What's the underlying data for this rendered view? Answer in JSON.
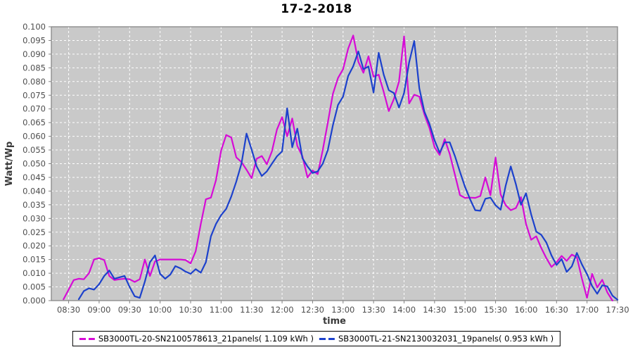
{
  "title": "17-2-2018",
  "x_axis": {
    "label": "time",
    "tick_labels": [
      "08:30",
      "09:00",
      "09:30",
      "10:00",
      "10:30",
      "11:00",
      "11:30",
      "12:00",
      "12:30",
      "13:00",
      "13:30",
      "14:00",
      "14:30",
      "15:00",
      "15:30",
      "16:00",
      "16:30",
      "17:00",
      "17:30"
    ]
  },
  "y_axis": {
    "label": "Watt/Wp",
    "min": 0.0,
    "max": 0.1,
    "step": 0.005,
    "decimals": 3
  },
  "colors": {
    "plot_background": "#c9c9c9",
    "grid": "#ffffff",
    "plot_border": "#808080",
    "tick_text": "#4d4d4d",
    "axis_label_text": "#3a3a3a",
    "series_magenta": "#d60bd6",
    "series_blue": "#1c41cc"
  },
  "chart_data": {
    "type": "line",
    "title": "17-2-2018",
    "xlabel": "time",
    "ylabel": "Watt/Wp",
    "ylim": [
      0.0,
      0.1
    ],
    "y_tick_step": 0.005,
    "grid": "white-dashed",
    "legend_position": "bottom-center",
    "x_domain": [
      "08:13",
      "17:30"
    ],
    "x": [
      "08:25",
      "08:30",
      "08:35",
      "08:40",
      "08:45",
      "08:50",
      "08:55",
      "09:00",
      "09:05",
      "09:10",
      "09:15",
      "09:20",
      "09:25",
      "09:30",
      "09:35",
      "09:40",
      "09:45",
      "09:50",
      "09:55",
      "10:00",
      "10:05",
      "10:10",
      "10:15",
      "10:20",
      "10:25",
      "10:30",
      "10:35",
      "10:40",
      "10:45",
      "10:50",
      "10:55",
      "11:00",
      "11:05",
      "11:10",
      "11:15",
      "11:20",
      "11:25",
      "11:30",
      "11:35",
      "11:40",
      "11:45",
      "11:50",
      "11:55",
      "12:00",
      "12:05",
      "12:10",
      "12:15",
      "12:20",
      "12:25",
      "12:30",
      "12:35",
      "12:40",
      "12:45",
      "12:50",
      "12:55",
      "13:00",
      "13:05",
      "13:10",
      "13:15",
      "13:20",
      "13:25",
      "13:30",
      "13:35",
      "13:40",
      "13:45",
      "13:50",
      "13:55",
      "14:00",
      "14:05",
      "14:10",
      "14:15",
      "14:20",
      "14:25",
      "14:30",
      "14:35",
      "14:40",
      "14:45",
      "14:50",
      "14:55",
      "15:00",
      "15:05",
      "15:10",
      "15:15",
      "15:20",
      "15:25",
      "15:30",
      "15:35",
      "15:40",
      "15:45",
      "15:50",
      "15:55",
      "16:00",
      "16:05",
      "16:10",
      "16:15",
      "16:20",
      "16:25",
      "16:30",
      "16:35",
      "16:40",
      "16:45",
      "16:50",
      "16:55",
      "17:00",
      "17:05",
      "17:10",
      "17:15",
      "17:20",
      "17:25",
      "17:30"
    ],
    "series": [
      {
        "name": "SB3000TL-20-SN2100578613_21panels( 1.109 kWh )",
        "color": "#d60bd6",
        "energy_kwh": "1.109",
        "values": [
          0.0005,
          0.004,
          0.0075,
          0.008,
          0.0078,
          0.01,
          0.015,
          0.0155,
          0.0148,
          0.009,
          0.0075,
          0.0078,
          0.008,
          0.0078,
          0.0068,
          0.0078,
          0.015,
          0.009,
          0.0143,
          0.015,
          0.015,
          0.015,
          0.015,
          0.015,
          0.0148,
          0.0136,
          0.018,
          0.028,
          0.037,
          0.0376,
          0.044,
          0.0548,
          0.0605,
          0.0596,
          0.0523,
          0.0506,
          0.0478,
          0.0447,
          0.0518,
          0.0528,
          0.0498,
          0.0545,
          0.0625,
          0.067,
          0.06,
          0.0665,
          0.0565,
          0.0527,
          0.045,
          0.0475,
          0.0462,
          0.055,
          0.065,
          0.0755,
          0.0813,
          0.0845,
          0.092,
          0.0968,
          0.0872,
          0.0832,
          0.0892,
          0.0818,
          0.0825,
          0.0762,
          0.0692,
          0.0736,
          0.08,
          0.0965,
          0.072,
          0.0752,
          0.0745,
          0.068,
          0.063,
          0.056,
          0.0532,
          0.059,
          0.0535,
          0.046,
          0.0385,
          0.0375,
          0.0376,
          0.0375,
          0.0382,
          0.045,
          0.0385,
          0.0522,
          0.0388,
          0.0348,
          0.033,
          0.0338,
          0.0378,
          0.028,
          0.0222,
          0.0235,
          0.0192,
          0.0155,
          0.0123,
          0.014,
          0.0163,
          0.0145,
          0.0168,
          0.0158,
          0.008,
          0.001,
          0.0098,
          0.0048,
          0.0076,
          0.003,
          0.0,
          null
        ]
      },
      {
        "name": "SB3000TL-21-SN2130032031_19panels( 0.953 kWh )",
        "color": "#1c41cc",
        "energy_kwh": "0.953",
        "values": [
          null,
          null,
          null,
          0.0005,
          0.0035,
          0.0045,
          0.004,
          0.006,
          0.009,
          0.011,
          0.008,
          0.0085,
          0.009,
          0.005,
          0.0016,
          0.001,
          0.007,
          0.014,
          0.0165,
          0.0098,
          0.008,
          0.0095,
          0.0126,
          0.0118,
          0.0106,
          0.0098,
          0.0115,
          0.0102,
          0.014,
          0.0235,
          0.028,
          0.0312,
          0.0335,
          0.038,
          0.0435,
          0.05,
          0.061,
          0.0552,
          0.049,
          0.0455,
          0.0472,
          0.05,
          0.0527,
          0.0545,
          0.0702,
          0.056,
          0.0628,
          0.052,
          0.049,
          0.0466,
          0.0472,
          0.05,
          0.055,
          0.064,
          0.0715,
          0.0745,
          0.082,
          0.0856,
          0.091,
          0.0845,
          0.0855,
          0.076,
          0.0905,
          0.0825,
          0.0768,
          0.0758,
          0.0705,
          0.0758,
          0.087,
          0.0948,
          0.0775,
          0.069,
          0.0645,
          0.0585,
          0.054,
          0.0578,
          0.0578,
          0.0528,
          0.047,
          0.0415,
          0.037,
          0.033,
          0.0328,
          0.0372,
          0.0376,
          0.0348,
          0.0332,
          0.042,
          0.049,
          0.0425,
          0.035,
          0.0392,
          0.0315,
          0.0252,
          0.024,
          0.0212,
          0.0165,
          0.013,
          0.0152,
          0.0105,
          0.0125,
          0.0174,
          0.0132,
          0.0097,
          0.0053,
          0.0025,
          0.0056,
          0.0052,
          0.0018,
          0.0003
        ]
      }
    ]
  }
}
